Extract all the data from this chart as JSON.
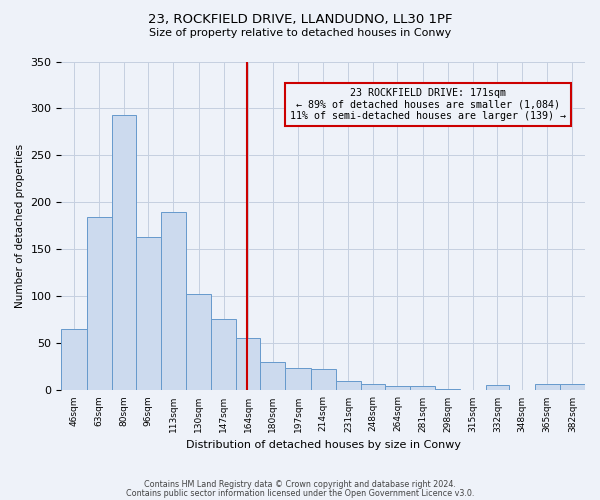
{
  "title1": "23, ROCKFIELD DRIVE, LLANDUDNO, LL30 1PF",
  "title2": "Size of property relative to detached houses in Conwy",
  "xlabel": "Distribution of detached houses by size in Conwy",
  "ylabel": "Number of detached properties",
  "bar_values": [
    65,
    185,
    293,
    163,
    190,
    103,
    76,
    56,
    30,
    24,
    23,
    10,
    7,
    5,
    5,
    2,
    0,
    6,
    0,
    7,
    7
  ],
  "bar_labels": [
    "46sqm",
    "63sqm",
    "80sqm",
    "96sqm",
    "113sqm",
    "130sqm",
    "147sqm",
    "164sqm",
    "180sqm",
    "197sqm",
    "214sqm",
    "231sqm",
    "248sqm",
    "264sqm",
    "281sqm",
    "298sqm",
    "315sqm",
    "332sqm",
    "348sqm",
    "365sqm",
    "382sqm"
  ],
  "bar_color": "#ccdaee",
  "bar_edgecolor": "#6699cc",
  "annotation_box_text": "23 ROCKFIELD DRIVE: 171sqm\n← 89% of detached houses are smaller (1,084)\n11% of semi-detached houses are larger (139) →",
  "annotation_box_edgecolor": "#cc0000",
  "vline_x": 171,
  "vline_color": "#cc0000",
  "ylim": [
    0,
    350
  ],
  "yticks": [
    0,
    50,
    100,
    150,
    200,
    250,
    300,
    350
  ],
  "footer1": "Contains HM Land Registry data © Crown copyright and database right 2024.",
  "footer2": "Contains public sector information licensed under the Open Government Licence v3.0.",
  "bg_color": "#eef2f9",
  "grid_color": "#c5cfe0",
  "bin_edges": [
    46,
    63,
    80,
    96,
    113,
    130,
    147,
    164,
    180,
    197,
    214,
    231,
    248,
    264,
    281,
    298,
    315,
    332,
    348,
    365,
    382,
    399
  ]
}
